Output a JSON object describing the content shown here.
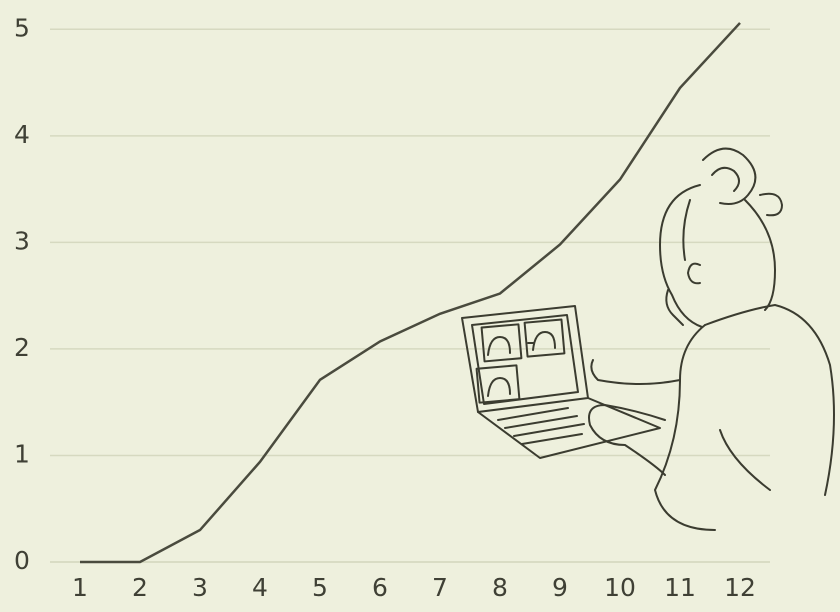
{
  "chart_data": {
    "type": "line",
    "x": [
      1,
      2,
      3,
      4,
      5,
      6,
      7,
      8,
      9,
      10,
      11,
      12
    ],
    "values": [
      0,
      0,
      0.3,
      0.94,
      1.71,
      2.07,
      2.33,
      2.52,
      2.98,
      3.59,
      4.45,
      5.06
    ],
    "color": "#4a4b3e",
    "xlim": [
      0.5,
      12.5
    ],
    "xticks": [
      1,
      2,
      3,
      4,
      5,
      6,
      7,
      8,
      9,
      10,
      11,
      12
    ],
    "ylim": [
      0,
      5.2
    ],
    "yticks": [
      0,
      1,
      2,
      3,
      4,
      5
    ],
    "grid": true
  }
}
